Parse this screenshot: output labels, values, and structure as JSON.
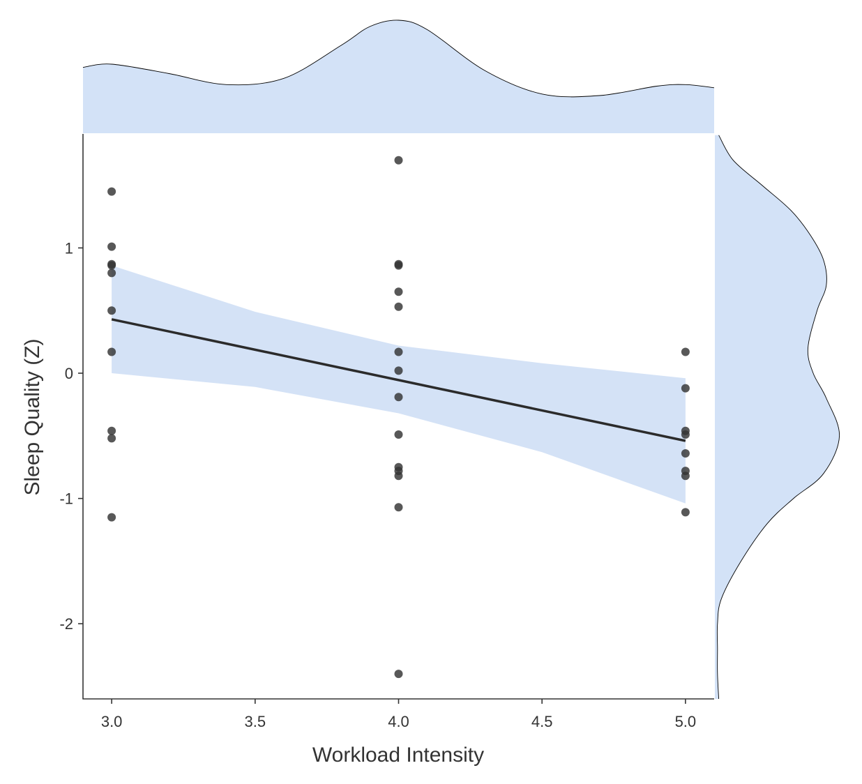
{
  "chart_data": {
    "type": "scatter",
    "title": "",
    "xlabel": "Workload Intensity",
    "ylabel": "Sleep Quality (Z)",
    "xlim": [
      2.9,
      5.1
    ],
    "ylim": [
      -2.6,
      1.91
    ],
    "xticks": [
      3.0,
      3.5,
      4.0,
      4.5,
      5.0
    ],
    "xtick_labels": [
      "3.0",
      "3.5",
      "4.0",
      "4.5",
      "5.0"
    ],
    "yticks": [
      -2,
      -1,
      0,
      1
    ],
    "ytick_labels": [
      "-2",
      "-1",
      "0",
      "1"
    ],
    "grid": false,
    "points": [
      {
        "x": 3.0,
        "y": 1.45
      },
      {
        "x": 3.0,
        "y": 1.01
      },
      {
        "x": 3.0,
        "y": 0.87
      },
      {
        "x": 3.0,
        "y": 0.86
      },
      {
        "x": 3.0,
        "y": 0.8
      },
      {
        "x": 3.0,
        "y": 0.5
      },
      {
        "x": 3.0,
        "y": 0.17
      },
      {
        "x": 3.0,
        "y": -0.46
      },
      {
        "x": 3.0,
        "y": -0.52
      },
      {
        "x": 3.0,
        "y": -1.15
      },
      {
        "x": 4.0,
        "y": 1.7
      },
      {
        "x": 4.0,
        "y": 0.87
      },
      {
        "x": 4.0,
        "y": 0.86
      },
      {
        "x": 4.0,
        "y": 0.65
      },
      {
        "x": 4.0,
        "y": 0.53
      },
      {
        "x": 4.0,
        "y": 0.17
      },
      {
        "x": 4.0,
        "y": 0.02
      },
      {
        "x": 4.0,
        "y": -0.19
      },
      {
        "x": 4.0,
        "y": -0.49
      },
      {
        "x": 4.0,
        "y": -0.75
      },
      {
        "x": 4.0,
        "y": -0.78
      },
      {
        "x": 4.0,
        "y": -0.82
      },
      {
        "x": 4.0,
        "y": -1.07
      },
      {
        "x": 4.0,
        "y": -2.4
      },
      {
        "x": 5.0,
        "y": 0.17
      },
      {
        "x": 5.0,
        "y": -0.12
      },
      {
        "x": 5.0,
        "y": -0.46
      },
      {
        "x": 5.0,
        "y": -0.49
      },
      {
        "x": 5.0,
        "y": -0.64
      },
      {
        "x": 5.0,
        "y": -0.78
      },
      {
        "x": 5.0,
        "y": -0.82
      },
      {
        "x": 5.0,
        "y": -1.11
      }
    ],
    "regression_line": {
      "x": [
        3.0,
        5.0
      ],
      "y": [
        0.43,
        -0.54
      ]
    },
    "confidence_band": {
      "x": [
        3.0,
        3.5,
        4.0,
        4.5,
        5.0
      ],
      "lower": [
        0.0,
        -0.11,
        -0.32,
        -0.63,
        -1.04
      ],
      "upper": [
        0.86,
        0.49,
        0.22,
        0.08,
        -0.04
      ]
    },
    "marginal_x_density": {
      "x": [
        2.9,
        3.0,
        3.2,
        3.4,
        3.6,
        3.8,
        3.9,
        4.0,
        4.1,
        4.3,
        4.5,
        4.7,
        4.9,
        5.0,
        5.1
      ],
      "density": [
        0.42,
        0.44,
        0.38,
        0.31,
        0.35,
        0.56,
        0.68,
        0.72,
        0.66,
        0.4,
        0.25,
        0.24,
        0.3,
        0.31,
        0.29
      ]
    },
    "marginal_y_density": {
      "y": [
        1.9,
        1.7,
        1.5,
        1.3,
        1.1,
        0.9,
        0.7,
        0.5,
        0.2,
        0.0,
        -0.2,
        -0.5,
        -0.8,
        -1.0,
        -1.2,
        -1.5,
        -1.8,
        -2.0,
        -2.2,
        -2.4,
        -2.6
      ],
      "density": [
        0.03,
        0.14,
        0.36,
        0.58,
        0.73,
        0.83,
        0.85,
        0.78,
        0.71,
        0.75,
        0.85,
        0.95,
        0.83,
        0.6,
        0.4,
        0.2,
        0.05,
        0.02,
        0.02,
        0.02,
        0.03
      ]
    },
    "colors": {
      "points": "#333333",
      "line": "#2b2b2b",
      "band": "#d4e2f6",
      "marginal_fill": "#d3e2f7",
      "marginal_stroke": "#000000",
      "axis": "#333333"
    }
  }
}
